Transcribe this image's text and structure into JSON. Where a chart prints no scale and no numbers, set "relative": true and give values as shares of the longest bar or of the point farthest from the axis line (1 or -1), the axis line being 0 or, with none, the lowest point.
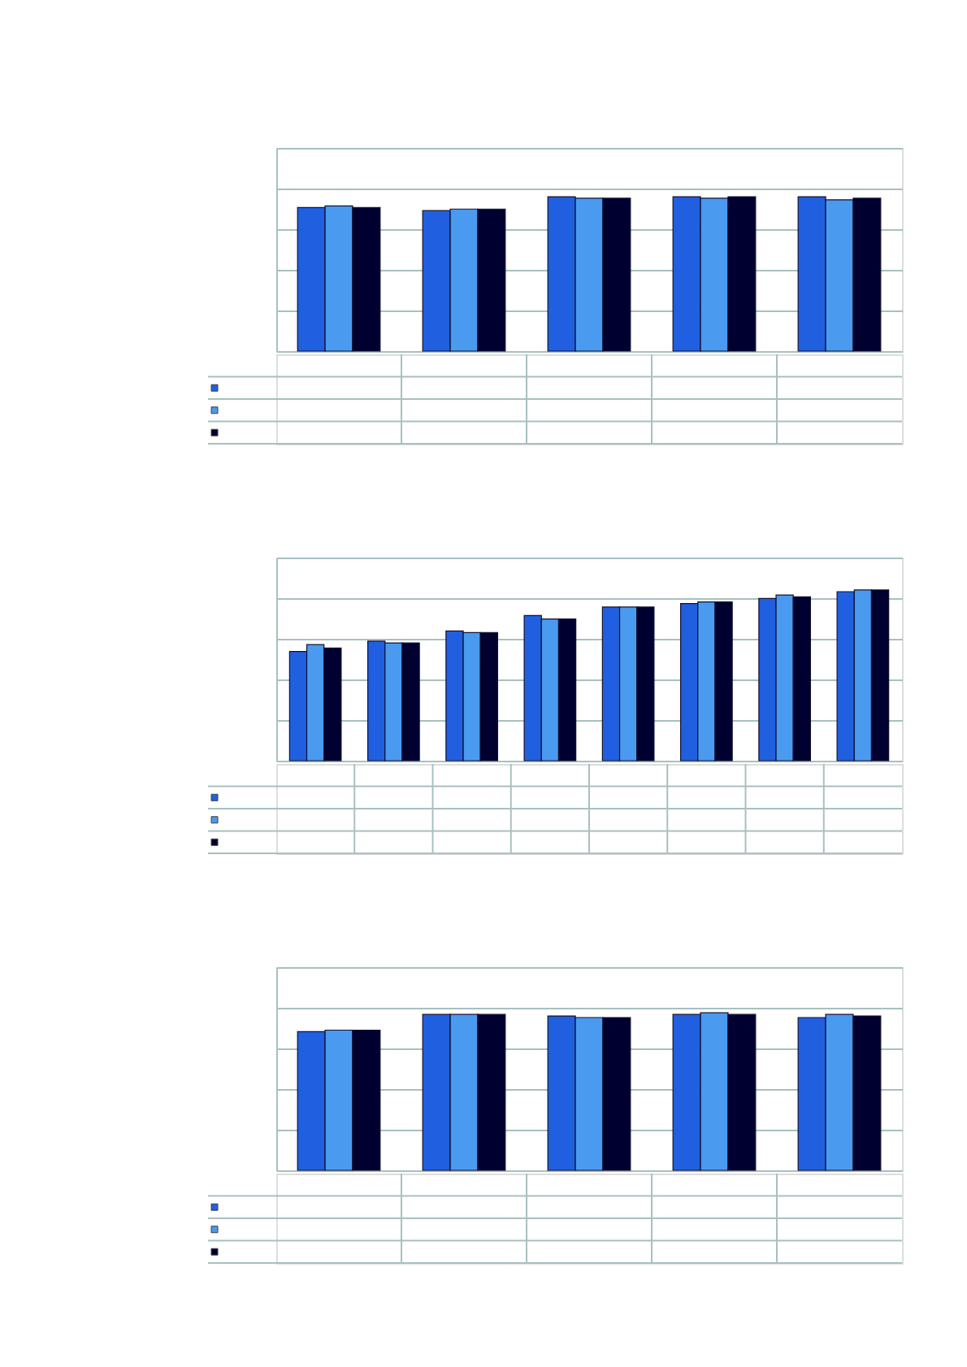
{
  "chart_data": [
    {
      "type": "bar",
      "relative": true,
      "grid": "y",
      "categories": [
        null,
        null,
        null,
        null,
        null
      ],
      "series": [
        {
          "color": "#2060e0",
          "values": [
            0.93,
            0.91,
            1,
            1,
            1
          ]
        },
        {
          "color": "#4a9af0",
          "values": [
            0.94,
            0.92,
            0.99,
            0.99,
            0.98
          ]
        },
        {
          "color": "#000030",
          "values": [
            0.93,
            0.92,
            0.99,
            1,
            0.99
          ]
        }
      ]
    },
    {
      "type": "bar",
      "relative": true,
      "grid": "y",
      "categories": [
        null,
        null,
        null,
        null,
        null,
        null,
        null,
        null
      ],
      "series": [
        {
          "color": "#2060e0",
          "values": [
            0.64,
            0.7,
            0.76,
            0.85,
            0.9,
            0.92,
            0.95,
            0.99
          ]
        },
        {
          "color": "#4a9af0",
          "values": [
            0.68,
            0.69,
            0.75,
            0.83,
            0.9,
            0.93,
            0.97,
            1
          ]
        },
        {
          "color": "#000030",
          "values": [
            0.66,
            0.69,
            0.75,
            0.83,
            0.9,
            0.93,
            0.96,
            1
          ]
        }
      ]
    },
    {
      "type": "bar",
      "relative": true,
      "grid": "y",
      "categories": [
        null,
        null,
        null,
        null,
        null
      ],
      "series": [
        {
          "color": "#2060e0",
          "values": [
            0.88,
            0.99,
            0.98,
            0.99,
            0.97
          ]
        },
        {
          "color": "#4a9af0",
          "values": [
            0.89,
            0.99,
            0.97,
            1,
            0.99
          ]
        },
        {
          "color": "#000030",
          "values": [
            0.89,
            0.99,
            0.97,
            0.99,
            0.98
          ]
        }
      ]
    }
  ]
}
